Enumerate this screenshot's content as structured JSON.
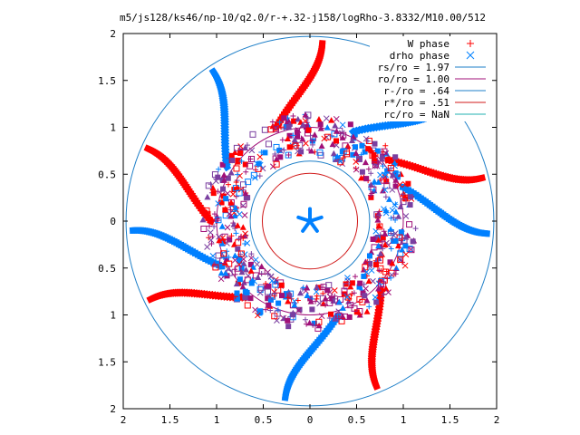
{
  "chart_data": {
    "type": "scatter",
    "title": "m5/js128/ks46/np-10/q2.0/r-+.32-j158/logRho-3.8332/M10.00/512",
    "xlabel": "",
    "ylabel": "",
    "xlim": [
      -2,
      2
    ],
    "ylim": [
      -2,
      2
    ],
    "x_tick_labels": [
      "2",
      "1.5",
      "1",
      "0.5",
      "0",
      "0.5",
      "1",
      "1.5",
      "2"
    ],
    "y_tick_labels": [
      "2",
      "1.5",
      "1",
      "0.5",
      "0",
      "0.5",
      "1",
      "1.5",
      "2"
    ],
    "x_ticks": [
      -2,
      -1.5,
      -1,
      -0.5,
      0,
      0.5,
      1,
      1.5,
      2
    ],
    "y_ticks": [
      2,
      1.5,
      1,
      0.5,
      0,
      -0.5,
      -1,
      -1.5,
      -2
    ],
    "grid": false,
    "legend_position": "top-right",
    "series": [
      {
        "name": "W phase",
        "marker": "plus",
        "color": "#ff0000"
      },
      {
        "name": "drho phase",
        "marker": "cross",
        "color": "#0080ff"
      }
    ],
    "circles": [
      {
        "name": "rs/ro = 1.97",
        "radius": 1.97,
        "color": "#1e7fc8"
      },
      {
        "name": "ro/ro = 1.00",
        "radius": 1.0,
        "color": "#a01078"
      },
      {
        "name": "r-/ro = .64",
        "radius": 0.64,
        "color": "#1e7fc8"
      },
      {
        "name": "r*/ro = .51",
        "radius": 0.51,
        "color": "#d01818"
      },
      {
        "name": "rc/ro = NaN",
        "radius": null,
        "color": "#22b2b2"
      }
    ],
    "arms": {
      "count": 10,
      "start_angles_deg": [
        14,
        40,
        86,
        123,
        156,
        183,
        206,
        262,
        292,
        356
      ],
      "colors": [
        "#ff0000",
        "#0080ff"
      ],
      "inner_radius": 1.0,
      "outer_radius": 1.9
    },
    "star": {
      "arms": 5,
      "radius": 0.13,
      "color": "#0080ff"
    }
  }
}
